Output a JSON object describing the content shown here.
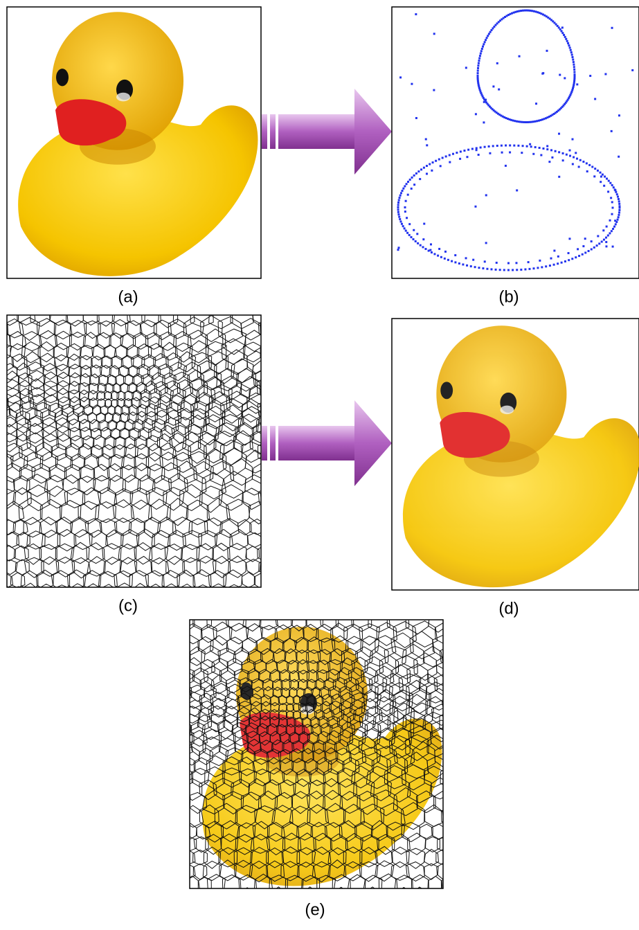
{
  "panels": {
    "a": "(a)",
    "b": "(b)",
    "c": "(c)",
    "d": "(d)",
    "e": "(e)"
  }
}
